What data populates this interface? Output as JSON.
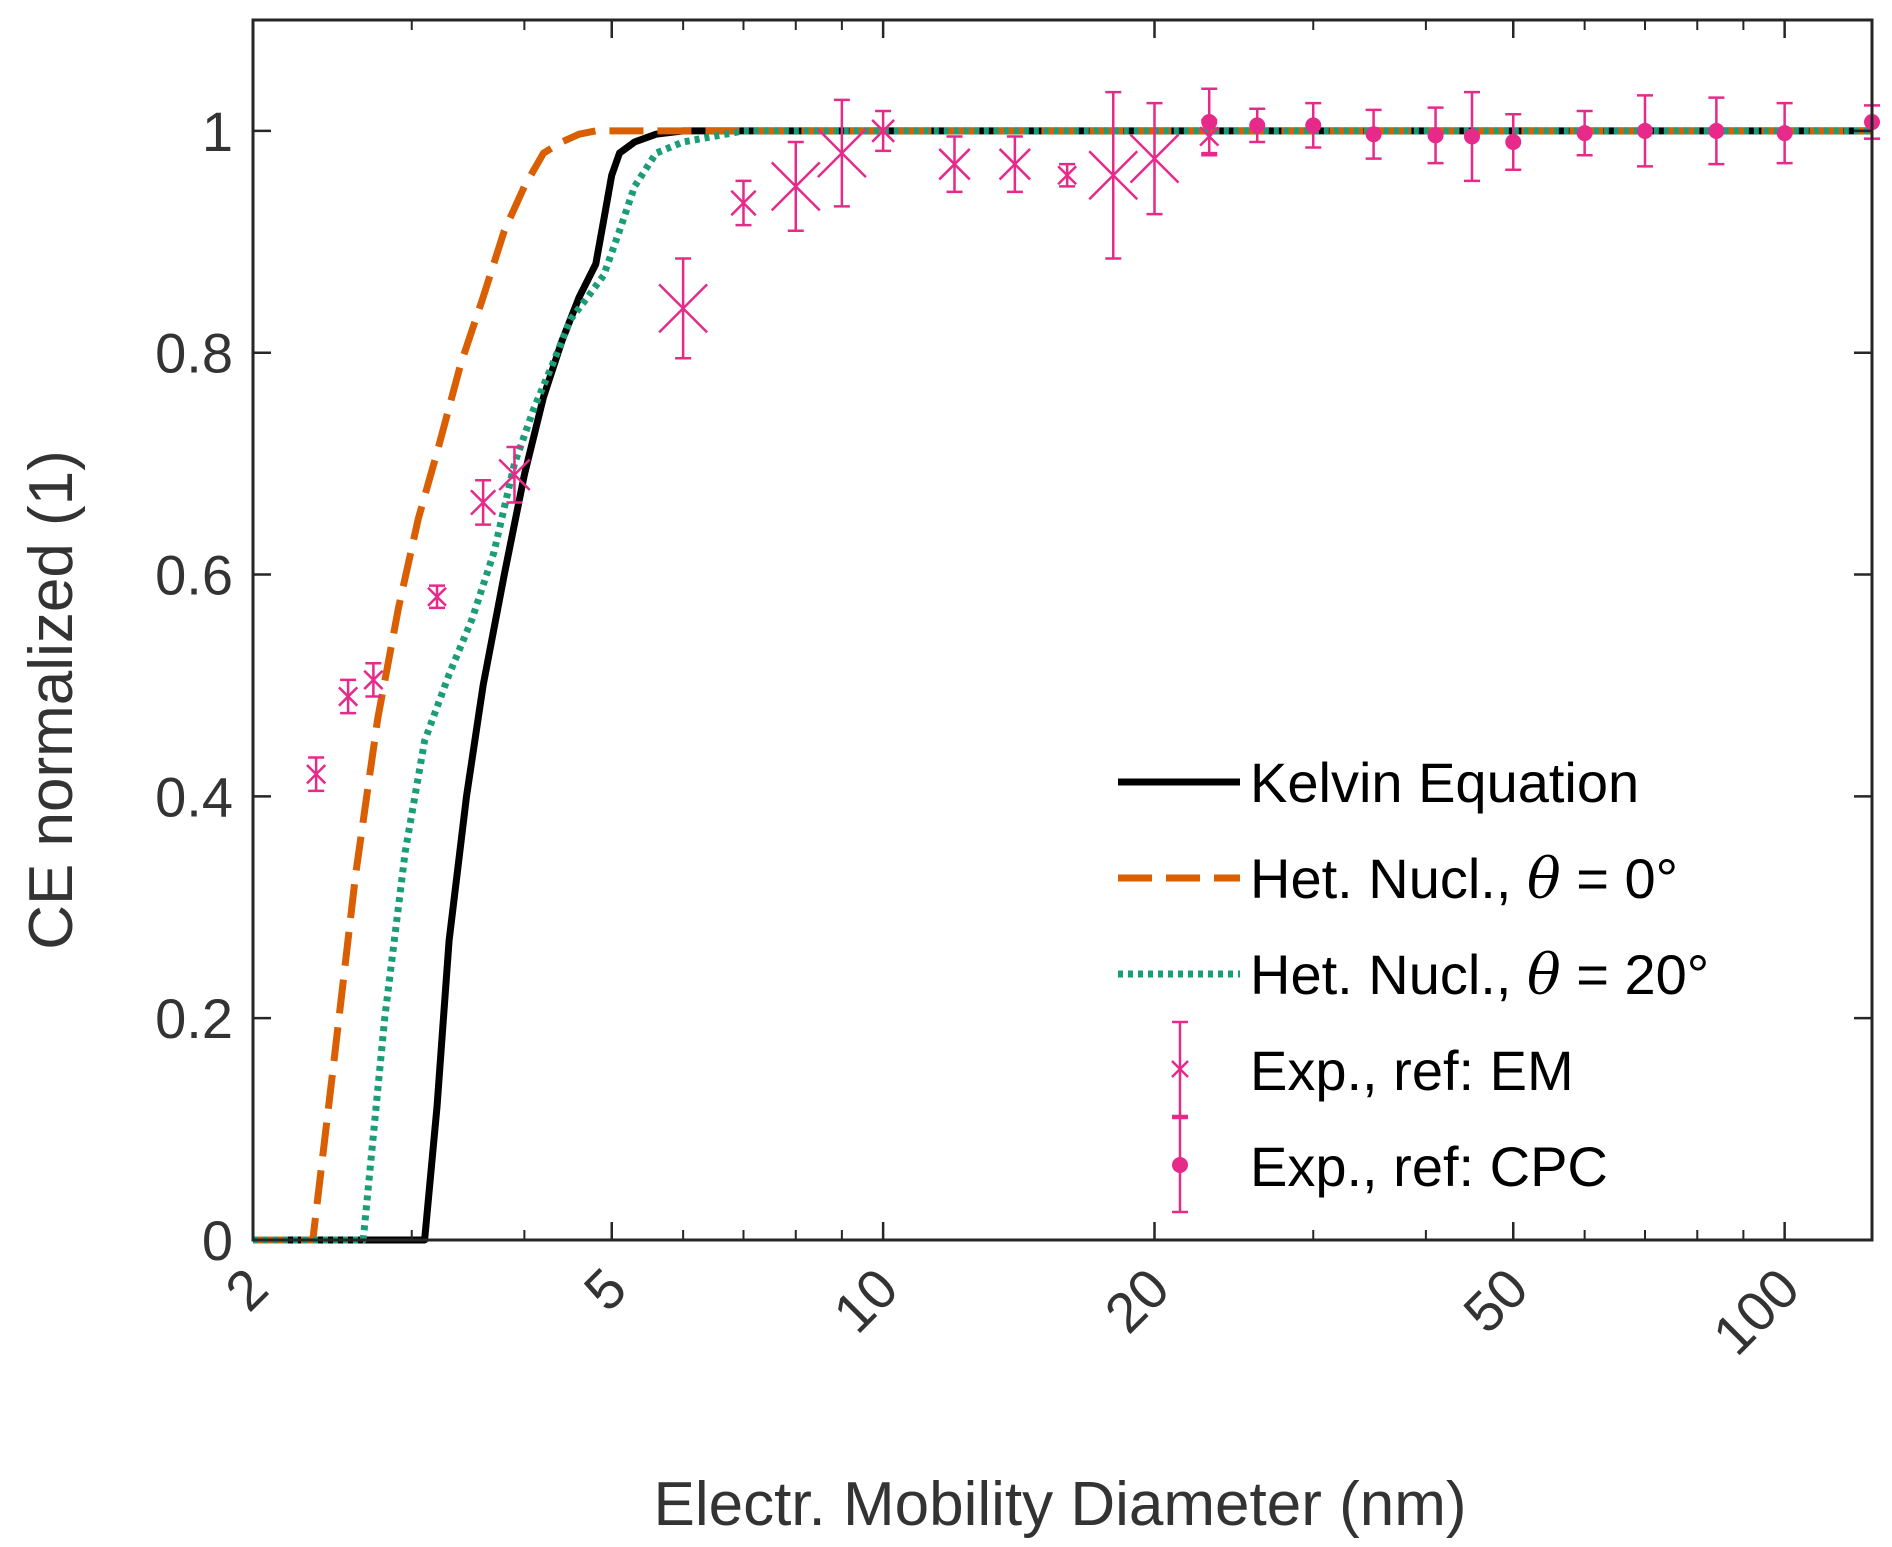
{
  "chart_data": {
    "type": "line",
    "xscale": "log",
    "xlim": [
      2,
      125
    ],
    "ylim": [
      0,
      1.1
    ],
    "xlabel": "Electr. Mobility Diameter (nm)",
    "ylabel": "CE normalized (1)",
    "xticks": [
      2,
      5,
      10,
      20,
      50,
      100
    ],
    "xtick_labels": [
      "2",
      "5",
      "10",
      "20",
      "50",
      "100"
    ],
    "yticks": [
      0,
      0.2,
      0.4,
      0.6,
      0.8,
      1
    ],
    "ytick_labels": [
      "0",
      "0.2",
      "0.4",
      "0.6",
      "0.8",
      "1"
    ],
    "colors": {
      "kelvin": "#000000",
      "het0": "#d95f02",
      "het20": "#1b9e77",
      "exp": "#e7298a",
      "axis": "#262626",
      "text": "#333333"
    },
    "series": [
      {
        "name": "Kelvin Equation",
        "style": "solid",
        "x": [
          2,
          3.0,
          3.1,
          3.2,
          3.3,
          3.45,
          3.6,
          3.8,
          4.0,
          4.2,
          4.4,
          4.6,
          4.8,
          4.9,
          5.0,
          5.1,
          5.3,
          5.6,
          6.0,
          8,
          20,
          125
        ],
        "y": [
          0,
          0,
          0.0,
          0.12,
          0.27,
          0.4,
          0.5,
          0.6,
          0.69,
          0.76,
          0.81,
          0.85,
          0.88,
          0.92,
          0.96,
          0.98,
          0.99,
          0.997,
          1.0,
          1.0,
          1.0,
          1.0
        ]
      },
      {
        "name": "Het. Nucl., θ = 0°",
        "style": "dashed",
        "x": [
          2,
          2.33,
          2.45,
          2.6,
          2.75,
          2.9,
          3.05,
          3.2,
          3.4,
          3.6,
          3.8,
          4.0,
          4.2,
          4.4,
          4.6,
          4.8,
          5.0,
          5.5,
          7,
          125
        ],
        "y": [
          0,
          0,
          0.15,
          0.33,
          0.47,
          0.57,
          0.65,
          0.71,
          0.79,
          0.85,
          0.91,
          0.95,
          0.98,
          0.99,
          0.997,
          1.0,
          1.0,
          1.0,
          1.0,
          1.0
        ]
      },
      {
        "name": "Het. Nucl., θ = 20°",
        "style": "dotted",
        "x": [
          2,
          2.65,
          2.8,
          2.95,
          3.1,
          3.3,
          3.5,
          3.7,
          3.9,
          4.1,
          4.3,
          4.5,
          4.7,
          4.9,
          5.1,
          5.3,
          5.6,
          6.0,
          7,
          125
        ],
        "y": [
          0,
          0,
          0.2,
          0.35,
          0.45,
          0.51,
          0.56,
          0.62,
          0.7,
          0.75,
          0.79,
          0.83,
          0.85,
          0.87,
          0.91,
          0.95,
          0.98,
          0.99,
          1.0,
          1.0
        ]
      }
    ],
    "scatter_series": [
      {
        "name": "Exp., ref: EM",
        "marker": "x",
        "points": [
          {
            "x": 2.35,
            "y": 0.42,
            "err": 0.015
          },
          {
            "x": 2.55,
            "y": 0.49,
            "err": 0.015
          },
          {
            "x": 2.72,
            "y": 0.505,
            "err": 0.015
          },
          {
            "x": 3.2,
            "y": 0.58,
            "err": 0.01
          },
          {
            "x": 3.6,
            "y": 0.665,
            "err": 0.02
          },
          {
            "x": 3.9,
            "y": 0.69,
            "err": 0.025
          },
          {
            "x": 6.0,
            "y": 0.84,
            "err": 0.045
          },
          {
            "x": 7.0,
            "y": 0.935,
            "err": 0.02
          },
          {
            "x": 8.0,
            "y": 0.95,
            "err": 0.04
          },
          {
            "x": 9.0,
            "y": 0.98,
            "err": 0.048
          },
          {
            "x": 10.0,
            "y": 1.0,
            "err": 0.018
          },
          {
            "x": 12.0,
            "y": 0.97,
            "err": 0.025
          },
          {
            "x": 14.0,
            "y": 0.97,
            "err": 0.025
          },
          {
            "x": 16.0,
            "y": 0.96,
            "err": 0.01
          },
          {
            "x": 18.0,
            "y": 0.96,
            "err": 0.075
          },
          {
            "x": 20.0,
            "y": 0.975,
            "err": 0.05
          },
          {
            "x": 23.0,
            "y": 0.995,
            "err": 0.015
          }
        ]
      },
      {
        "name": "Exp., ref: CPC",
        "marker": "dot",
        "points": [
          {
            "x": 23.0,
            "y": 1.008,
            "err": 0.03
          },
          {
            "x": 26.0,
            "y": 1.005,
            "err": 0.015
          },
          {
            "x": 30.0,
            "y": 1.005,
            "err": 0.02
          },
          {
            "x": 35.0,
            "y": 0.997,
            "err": 0.022
          },
          {
            "x": 41.0,
            "y": 0.996,
            "err": 0.025
          },
          {
            "x": 45.0,
            "y": 0.995,
            "err": 0.04
          },
          {
            "x": 50.0,
            "y": 0.99,
            "err": 0.025
          },
          {
            "x": 60.0,
            "y": 0.998,
            "err": 0.02
          },
          {
            "x": 70.0,
            "y": 1.0,
            "err": 0.032
          },
          {
            "x": 84.0,
            "y": 1.0,
            "err": 0.03
          },
          {
            "x": 100.0,
            "y": 0.998,
            "err": 0.027
          },
          {
            "x": 125.0,
            "y": 1.008,
            "err": 0.015
          }
        ]
      }
    ],
    "legend": {
      "placement": "lower-right",
      "entries": [
        {
          "label_prefix": "Kelvin Equation",
          "label_suffix": ""
        },
        {
          "label_prefix": "Het. Nucl., ",
          "theta_symbol": "θ",
          "label_suffix": " = 0°"
        },
        {
          "label_prefix": "Het. Nucl., ",
          "theta_symbol": "θ",
          "label_suffix": " = 20°"
        },
        {
          "label_prefix": "Exp., ref: EM",
          "label_suffix": ""
        },
        {
          "label_prefix": "Exp., ref: CPC",
          "label_suffix": ""
        }
      ]
    }
  }
}
